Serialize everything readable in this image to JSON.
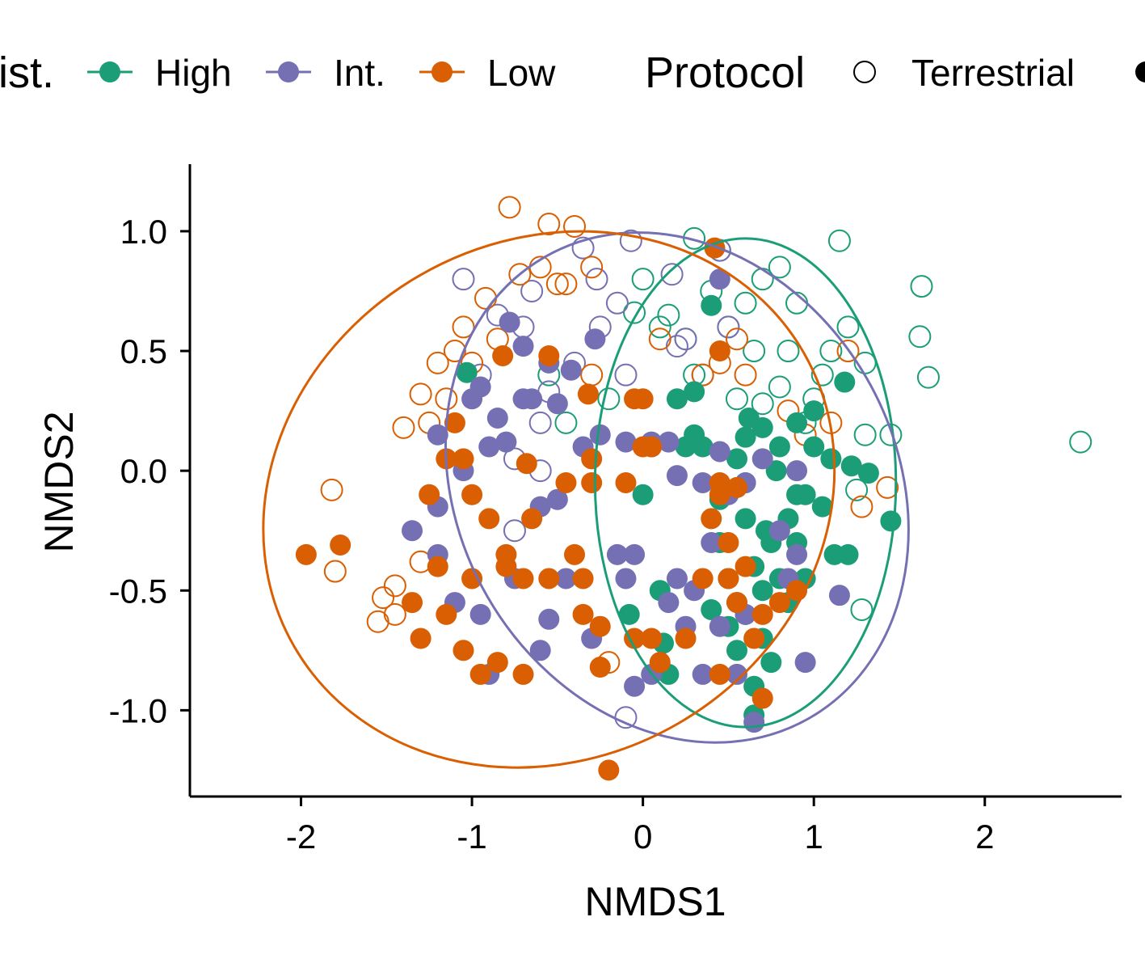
{
  "chart_data": {
    "type": "scatter",
    "xlabel": "NMDS1",
    "ylabel": "NMDS2",
    "xlim": [
      -2.65,
      2.8
    ],
    "ylim": [
      -1.36,
      1.28
    ],
    "x_ticks": [
      -2,
      -1,
      0,
      1,
      2
    ],
    "x_tick_labels": [
      "-2",
      "-1",
      "0",
      "1",
      "2"
    ],
    "y_ticks": [
      -1.0,
      -0.5,
      0.0,
      0.5,
      1.0
    ],
    "y_tick_labels": [
      "-1.0",
      "-0.5",
      "0.0",
      "0.5",
      "1.0"
    ],
    "grid": false,
    "legend": {
      "placement": "top",
      "groups": [
        {
          "title": "ist.",
          "entries": [
            "High",
            "Int.",
            "Low"
          ]
        },
        {
          "title": "Protocol",
          "entries": [
            "Terrestrial"
          ]
        }
      ]
    },
    "colors": {
      "High": "#1b9e77",
      "Int.": "#7570b3",
      "Low": "#d95f02"
    },
    "series": [
      {
        "name": "High",
        "ellipse": {
          "cx": 0.6,
          "cy": -0.05,
          "rx": 0.88,
          "ry": 1.02,
          "angle": 0
        },
        "terrestrial": [
          [
            0.3,
            0.97
          ],
          [
            0.45,
            0.92
          ],
          [
            0.8,
            0.85
          ],
          [
            1.15,
            0.96
          ],
          [
            1.05,
            0.4
          ],
          [
            1.2,
            0.6
          ],
          [
            1.3,
            0.45
          ],
          [
            1.63,
            0.77
          ],
          [
            1.62,
            0.56
          ],
          [
            1.67,
            0.39
          ],
          [
            2.56,
            0.12
          ],
          [
            0.0,
            0.8
          ],
          [
            0.15,
            0.65
          ],
          [
            -0.05,
            0.66
          ],
          [
            -0.2,
            0.3
          ],
          [
            1.3,
            0.15
          ],
          [
            1.45,
            0.15
          ],
          [
            1.28,
            -0.58
          ],
          [
            1.25,
            -0.08
          ],
          [
            0.6,
            0.7
          ],
          [
            0.7,
            0.8
          ],
          [
            0.9,
            0.7
          ],
          [
            0.85,
            0.5
          ],
          [
            1.0,
            0.3
          ],
          [
            0.95,
            0.2
          ],
          [
            0.7,
            0.28
          ],
          [
            0.8,
            0.35
          ],
          [
            0.65,
            0.5
          ],
          [
            0.5,
            0.6
          ],
          [
            0.25,
            0.55
          ],
          [
            0.1,
            0.6
          ],
          [
            0.3,
            0.4
          ],
          [
            -0.45,
            0.2
          ],
          [
            -0.55,
            0.4
          ],
          [
            0.55,
            0.3
          ],
          [
            1.1,
            0.5
          ],
          [
            0.4,
            0.75
          ]
        ],
        "filled": [
          [
            -1.03,
            0.41
          ],
          [
            0.4,
            0.69
          ],
          [
            1.18,
            0.37
          ],
          [
            1.22,
            0.02
          ],
          [
            1.45,
            -0.21
          ],
          [
            1.32,
            -0.01
          ],
          [
            1.2,
            -0.35
          ],
          [
            1.12,
            -0.35
          ],
          [
            0.7,
            0.18
          ],
          [
            0.6,
            0.14
          ],
          [
            0.55,
            0.05
          ],
          [
            0.8,
            0.1
          ],
          [
            0.9,
            0.2
          ],
          [
            1.0,
            0.1
          ],
          [
            0.95,
            -0.1
          ],
          [
            0.85,
            -0.2
          ],
          [
            0.75,
            -0.3
          ],
          [
            0.65,
            -0.4
          ],
          [
            0.7,
            -0.5
          ],
          [
            0.8,
            -0.45
          ],
          [
            0.6,
            -0.2
          ],
          [
            0.45,
            -0.3
          ],
          [
            0.9,
            -0.3
          ],
          [
            1.05,
            -0.15
          ],
          [
            1.1,
            0.05
          ],
          [
            0.6,
            -0.6
          ],
          [
            0.7,
            -0.7
          ],
          [
            0.55,
            -0.75
          ],
          [
            0.75,
            -0.8
          ],
          [
            0.65,
            -0.9
          ],
          [
            0.3,
            0.33
          ],
          [
            0.2,
            0.3
          ],
          [
            0.25,
            0.1
          ],
          [
            0.3,
            0.15
          ],
          [
            0.05,
            0.1
          ],
          [
            0.0,
            -0.1
          ],
          [
            0.1,
            -0.5
          ],
          [
            0.15,
            -0.85
          ],
          [
            0.12,
            -0.72
          ],
          [
            -0.08,
            -0.6
          ],
          [
            0.4,
            -0.58
          ],
          [
            0.5,
            -0.45
          ],
          [
            0.65,
            -1.02
          ],
          [
            0.85,
            -0.55
          ],
          [
            0.9,
            -0.1
          ],
          [
            0.6,
            -0.05
          ],
          [
            0.45,
            -0.12
          ],
          [
            1.0,
            0.25
          ],
          [
            0.78,
            0.0
          ],
          [
            0.72,
            -0.25
          ],
          [
            0.95,
            -0.45
          ],
          [
            0.5,
            -0.65
          ],
          [
            0.35,
            0.1
          ],
          [
            0.62,
            0.22
          ]
        ]
      },
      {
        "name": "Int.",
        "ellipse": {
          "cx": 0.2,
          "cy": -0.07,
          "rx": 1.28,
          "ry": 1.11,
          "angle": -30
        },
        "terrestrial": [
          [
            -0.35,
            0.93
          ],
          [
            -0.27,
            0.8
          ],
          [
            -0.07,
            0.96
          ],
          [
            0.45,
            0.92
          ],
          [
            -0.15,
            0.7
          ],
          [
            0.17,
            0.82
          ],
          [
            -1.05,
            0.8
          ],
          [
            -0.85,
            0.65
          ],
          [
            -0.65,
            0.75
          ],
          [
            -0.25,
            0.6
          ],
          [
            0.2,
            0.52
          ],
          [
            0.35,
            0.4
          ],
          [
            -0.4,
            0.45
          ],
          [
            -0.1,
            0.4
          ],
          [
            -0.7,
            0.6
          ],
          [
            -0.55,
            0.33
          ],
          [
            -0.6,
            0.2
          ],
          [
            -0.75,
            -0.25
          ],
          [
            -0.75,
            0.05
          ],
          [
            -0.6,
            0.0
          ],
          [
            -0.1,
            -1.03
          ],
          [
            0.5,
            0.6
          ],
          [
            0.25,
            0.55
          ],
          [
            -0.95,
            0.4
          ]
        ],
        "filled": [
          [
            -0.78,
            0.62
          ],
          [
            -0.7,
            0.52
          ],
          [
            -0.28,
            0.55
          ],
          [
            -0.42,
            0.42
          ],
          [
            -0.55,
            0.45
          ],
          [
            0.45,
            0.8
          ],
          [
            -0.95,
            0.35
          ],
          [
            -1.0,
            0.3
          ],
          [
            -0.85,
            0.22
          ],
          [
            -0.7,
            0.3
          ],
          [
            -0.65,
            0.3
          ],
          [
            -0.5,
            0.28
          ],
          [
            -1.2,
            0.15
          ],
          [
            -1.05,
            0.0
          ],
          [
            -0.9,
            0.1
          ],
          [
            -0.8,
            0.12
          ],
          [
            -0.6,
            -0.15
          ],
          [
            -0.5,
            -0.12
          ],
          [
            -0.35,
            0.1
          ],
          [
            -0.25,
            0.15
          ],
          [
            -0.1,
            0.12
          ],
          [
            0.05,
            0.12
          ],
          [
            0.15,
            0.12
          ],
          [
            0.2,
            -0.02
          ],
          [
            0.35,
            -0.05
          ],
          [
            0.45,
            0.08
          ],
          [
            0.5,
            -0.1
          ],
          [
            0.6,
            -0.05
          ],
          [
            0.7,
            0.05
          ],
          [
            0.8,
            -0.25
          ],
          [
            0.9,
            -0.35
          ],
          [
            0.55,
            -0.55
          ],
          [
            0.45,
            -0.65
          ],
          [
            0.55,
            -0.85
          ],
          [
            0.65,
            -1.05
          ],
          [
            0.35,
            -0.85
          ],
          [
            0.25,
            -0.65
          ],
          [
            0.2,
            -0.45
          ],
          [
            0.15,
            -0.55
          ],
          [
            -0.05,
            -0.35
          ],
          [
            -0.1,
            -0.45
          ],
          [
            -0.3,
            -0.7
          ],
          [
            -0.45,
            -0.45
          ],
          [
            -0.55,
            -0.62
          ],
          [
            -0.6,
            -0.75
          ],
          [
            -0.75,
            -0.45
          ],
          [
            -0.9,
            -0.85
          ],
          [
            -0.95,
            -0.6
          ],
          [
            -1.1,
            -0.55
          ],
          [
            -1.2,
            -0.35
          ],
          [
            -1.35,
            -0.25
          ],
          [
            -1.2,
            -0.15
          ],
          [
            -0.15,
            -0.35
          ],
          [
            -0.05,
            -0.9
          ],
          [
            0.05,
            -0.85
          ],
          [
            0.3,
            -0.5
          ],
          [
            0.4,
            -0.3
          ],
          [
            0.95,
            -0.8
          ],
          [
            1.15,
            -0.52
          ],
          [
            0.85,
            -0.45
          ],
          [
            0.9,
            0.0
          ],
          [
            0.6,
            -0.6
          ]
        ]
      },
      {
        "name": "Low",
        "ellipse": {
          "cx": -0.55,
          "cy": -0.12,
          "rx": 1.72,
          "ry": 1.08,
          "angle": -30
        },
        "terrestrial": [
          [
            -0.78,
            1.1
          ],
          [
            -0.55,
            1.03
          ],
          [
            -0.4,
            1.02
          ],
          [
            -0.3,
            0.85
          ],
          [
            -0.45,
            0.78
          ],
          [
            -0.72,
            0.82
          ],
          [
            -0.92,
            0.72
          ],
          [
            -1.05,
            0.6
          ],
          [
            -1.1,
            0.5
          ],
          [
            -1.2,
            0.45
          ],
          [
            -1.0,
            0.45
          ],
          [
            -0.85,
            0.55
          ],
          [
            -1.15,
            0.3
          ],
          [
            -1.25,
            0.2
          ],
          [
            -1.3,
            0.32
          ],
          [
            -1.4,
            0.18
          ],
          [
            -1.3,
            -0.38
          ],
          [
            -1.45,
            -0.48
          ],
          [
            -1.52,
            -0.53
          ],
          [
            -1.55,
            -0.63
          ],
          [
            -1.45,
            -0.6
          ],
          [
            -1.8,
            -0.42
          ],
          [
            -1.82,
            -0.08
          ],
          [
            0.55,
            0.55
          ],
          [
            0.45,
            0.45
          ],
          [
            0.35,
            0.4
          ],
          [
            0.6,
            0.4
          ],
          [
            0.85,
            0.25
          ],
          [
            0.95,
            0.15
          ],
          [
            1.1,
            0.2
          ],
          [
            1.2,
            0.5
          ],
          [
            1.43,
            -0.07
          ],
          [
            1.28,
            -0.15
          ],
          [
            0.1,
            0.55
          ],
          [
            -0.3,
            0.4
          ],
          [
            -0.2,
            -0.8
          ],
          [
            -0.6,
            0.85
          ],
          [
            -0.5,
            0.78
          ]
        ],
        "filled": [
          [
            -1.97,
            -0.35
          ],
          [
            -1.77,
            -0.31
          ],
          [
            -0.68,
            0.03
          ],
          [
            -0.55,
            0.48
          ],
          [
            -0.82,
            0.48
          ],
          [
            -0.3,
            0.05
          ],
          [
            -0.32,
            0.32
          ],
          [
            -0.05,
            0.3
          ],
          [
            0.0,
            0.3
          ],
          [
            -1.1,
            0.2
          ],
          [
            -1.05,
            0.05
          ],
          [
            -1.15,
            0.05
          ],
          [
            -1.0,
            -0.1
          ],
          [
            -1.25,
            -0.1
          ],
          [
            -0.9,
            -0.2
          ],
          [
            -0.8,
            -0.35
          ],
          [
            -0.7,
            -0.45
          ],
          [
            -0.65,
            -0.2
          ],
          [
            -0.45,
            -0.05
          ],
          [
            -0.4,
            -0.35
          ],
          [
            -0.3,
            -0.05
          ],
          [
            -0.1,
            -0.05
          ],
          [
            0.0,
            0.1
          ],
          [
            0.05,
            0.1
          ],
          [
            0.45,
            -0.05
          ],
          [
            0.55,
            -0.07
          ],
          [
            0.5,
            -0.45
          ],
          [
            0.55,
            -0.55
          ],
          [
            0.6,
            -0.4
          ],
          [
            0.7,
            -0.6
          ],
          [
            0.8,
            -0.55
          ],
          [
            0.9,
            -0.5
          ],
          [
            0.4,
            -0.2
          ],
          [
            0.35,
            -0.45
          ],
          [
            0.25,
            -0.7
          ],
          [
            -0.05,
            -0.7
          ],
          [
            -0.25,
            -0.65
          ],
          [
            -0.35,
            -0.45
          ],
          [
            -0.55,
            -0.45
          ],
          [
            -0.8,
            -0.4
          ],
          [
            -1.0,
            -0.45
          ],
          [
            -1.2,
            -0.4
          ],
          [
            -1.35,
            -0.55
          ],
          [
            -1.3,
            -0.7
          ],
          [
            -1.15,
            -0.6
          ],
          [
            -1.05,
            -0.75
          ],
          [
            -0.95,
            -0.85
          ],
          [
            -0.85,
            -0.8
          ],
          [
            -0.7,
            -0.85
          ],
          [
            -0.25,
            -0.82
          ],
          [
            0.05,
            -0.7
          ],
          [
            0.45,
            -0.85
          ],
          [
            0.7,
            -0.95
          ],
          [
            0.45,
            0.5
          ],
          [
            0.42,
            0.93
          ],
          [
            0.5,
            -0.3
          ],
          [
            0.65,
            -0.7
          ],
          [
            -0.2,
            -1.25
          ],
          [
            -0.35,
            -0.6
          ],
          [
            0.1,
            -0.8
          ],
          [
            0.45,
            -0.1
          ]
        ]
      }
    ]
  }
}
